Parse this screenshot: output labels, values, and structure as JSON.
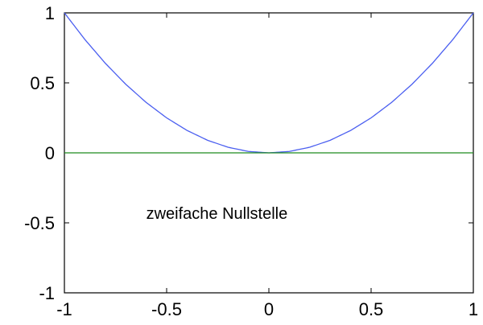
{
  "chart_data": {
    "type": "line",
    "title": "",
    "xlabel": "",
    "ylabel": "",
    "xlim": [
      -1,
      1
    ],
    "ylim": [
      -1,
      1
    ],
    "xticks": [
      -1,
      -0.5,
      0,
      0.5,
      1
    ],
    "xtick_labels": [
      "-1",
      "-0.5",
      "0",
      "0.5",
      "1"
    ],
    "yticks": [
      1,
      0.5,
      0,
      -0.5,
      -1
    ],
    "ytick_labels": [
      "1",
      "0.5",
      "0",
      "-0.5",
      "-1"
    ],
    "grid": false,
    "series": [
      {
        "color": "#4b5ff0",
        "x": [
          -1,
          -0.9,
          -0.8,
          -0.7,
          -0.6,
          -0.5,
          -0.4,
          -0.3,
          -0.2,
          -0.1,
          0,
          0.1,
          0.2,
          0.3,
          0.4,
          0.5,
          0.6,
          0.7,
          0.8,
          0.9,
          1
        ],
        "y": [
          1,
          0.81,
          0.64,
          0.49,
          0.36,
          0.25,
          0.16,
          0.09,
          0.04,
          0.01,
          0,
          0.01,
          0.04,
          0.09,
          0.16,
          0.25,
          0.36,
          0.49,
          0.64,
          0.81,
          1
        ]
      },
      {
        "color": "#1e8a1e",
        "x": [
          -1,
          1
        ],
        "y": [
          0,
          0
        ]
      }
    ],
    "annotations": [
      {
        "text": "zweifache Nullstelle",
        "x": -0.6,
        "y": -0.47
      }
    ]
  }
}
